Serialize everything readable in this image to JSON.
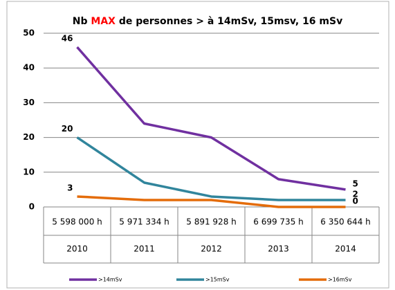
{
  "chart_data": {
    "type": "line",
    "title": "Nb",
    "title_highlight": "MAX",
    "title_rest": "de personnes > à 14mSv, 15msv, 16 mSv",
    "title_highlight_color": "#ff0000",
    "categories": [
      "2010",
      "2011",
      "2012",
      "2013",
      "2014"
    ],
    "sublabels": [
      "5 598 000 h",
      "5 971 334 h",
      "5 891 928 h",
      "6 699 735 h",
      "6 350 644 h"
    ],
    "series": [
      {
        "name": ">14mSv",
        "color": "#7030a0",
        "values": [
          46,
          24,
          20,
          8,
          5
        ]
      },
      {
        "name": ">15mSv",
        "color": "#31859c",
        "values": [
          20,
          7,
          3,
          2,
          2
        ]
      },
      {
        "name": ">16mSv",
        "color": "#e46c0a",
        "values": [
          3,
          2,
          2,
          0,
          0
        ]
      }
    ],
    "labeled_points": [
      0,
      4
    ],
    "ylim": [
      0,
      50
    ],
    "yticks": [
      0,
      10,
      20,
      30,
      40,
      50
    ],
    "grid": true,
    "legend": "bottom"
  }
}
